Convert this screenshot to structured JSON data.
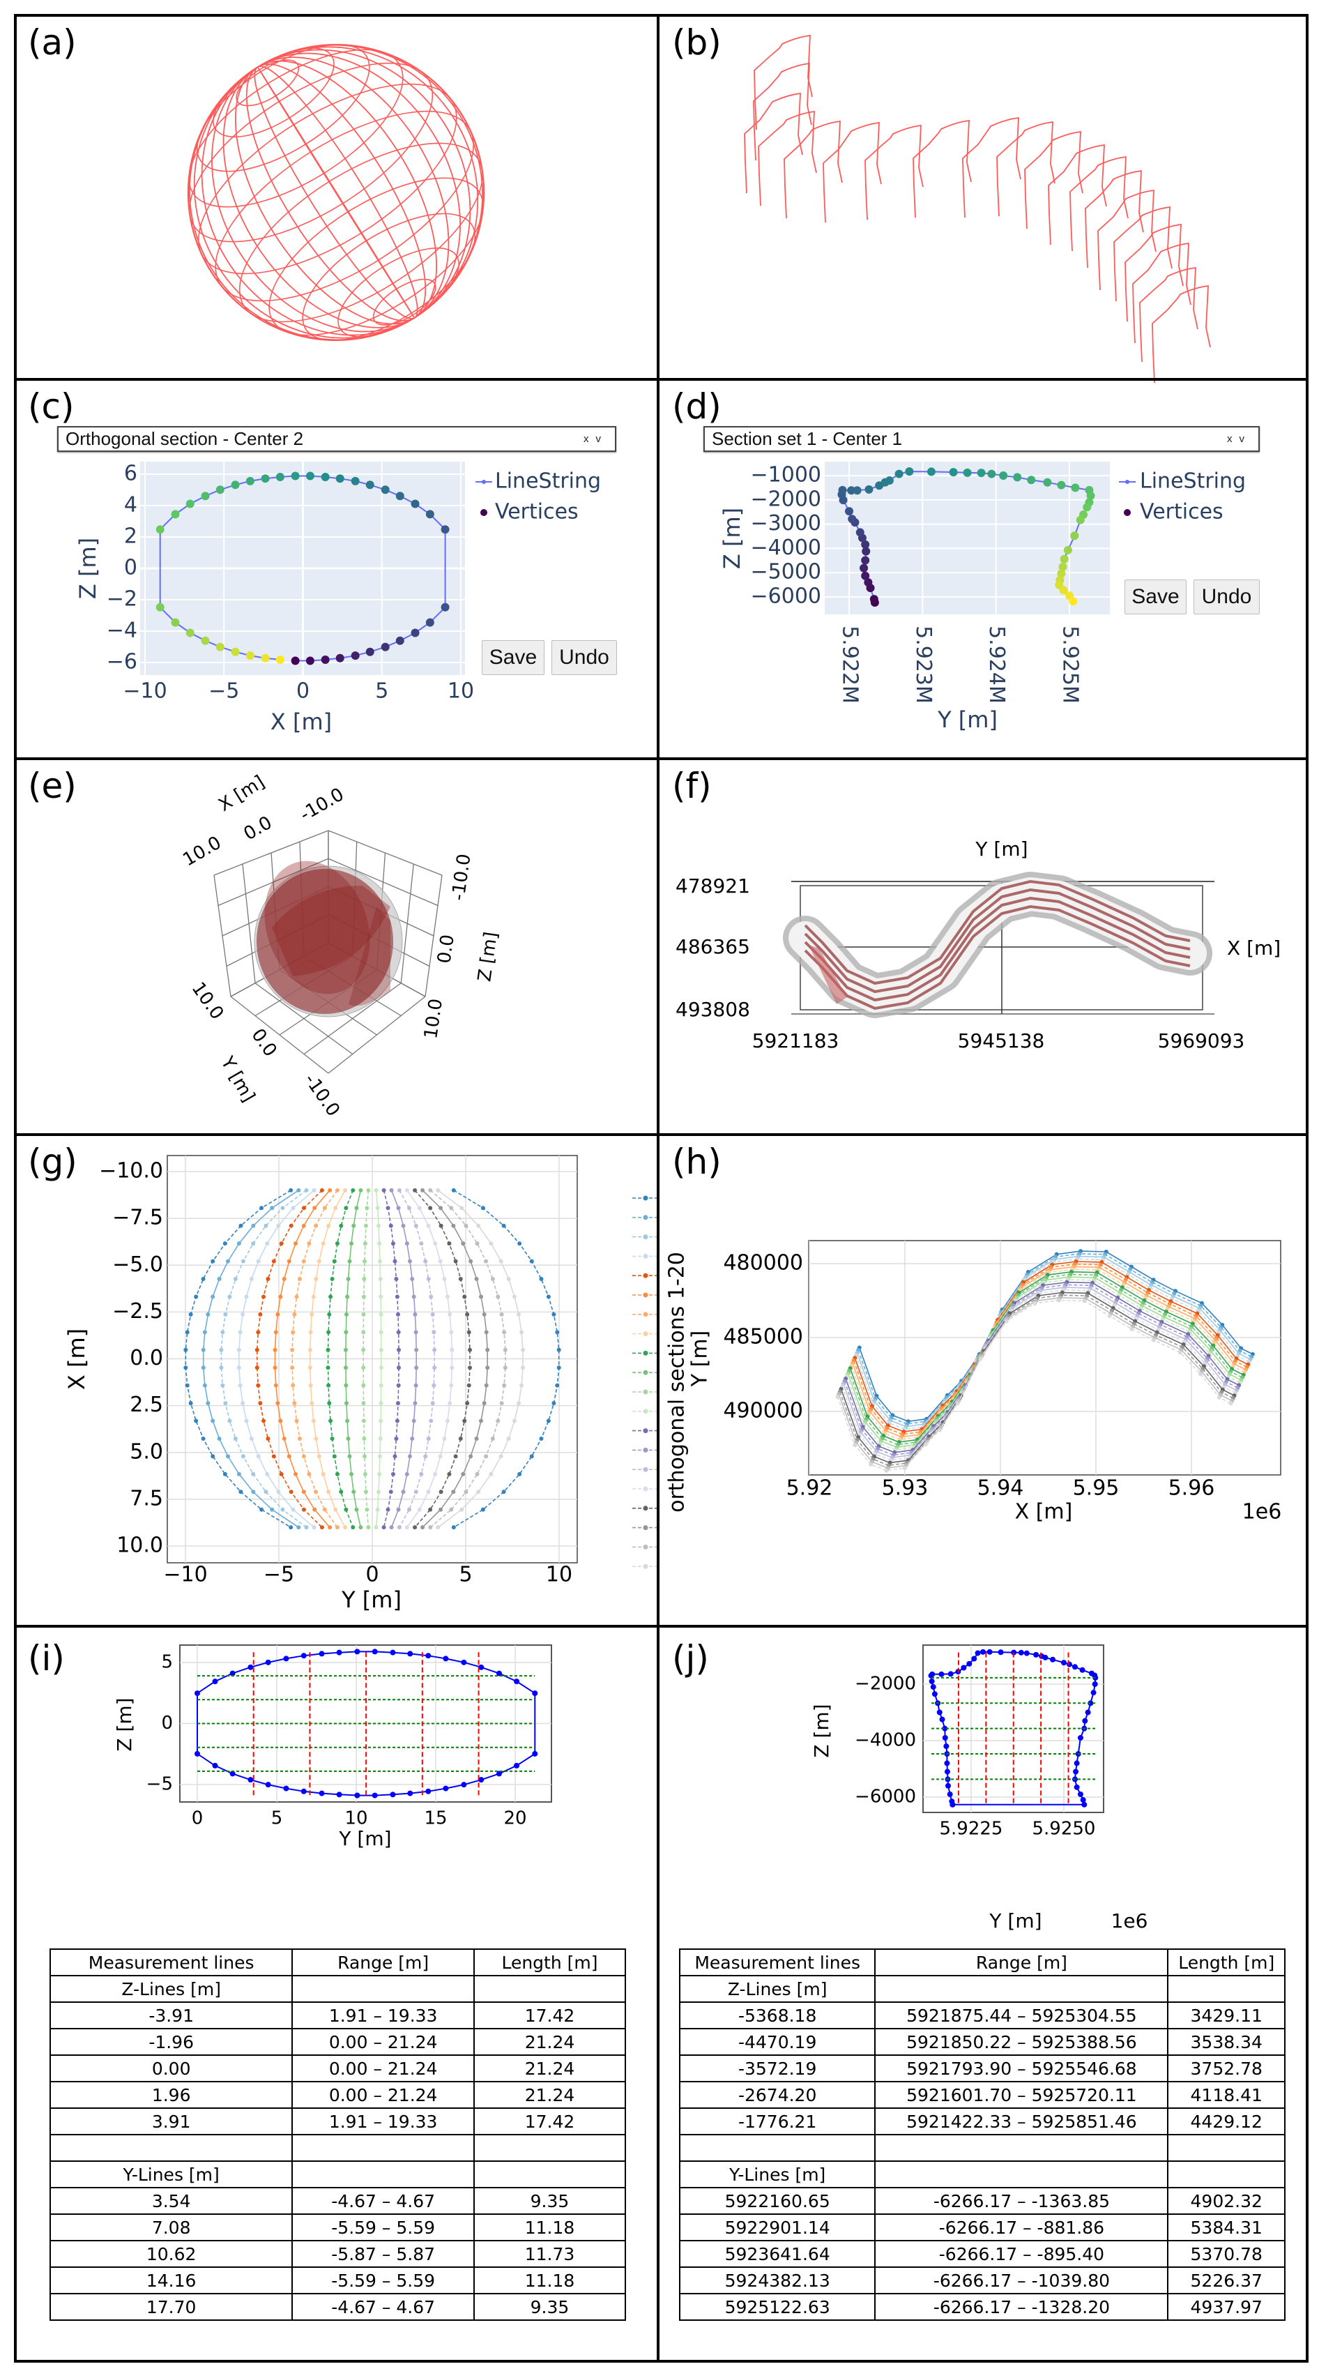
{
  "panel_labels": {
    "a": "(a)",
    "b": "(b)",
    "c": "(c)",
    "d": "(d)",
    "e": "(e)",
    "f": "(f)",
    "g": "(g)",
    "h": "(h)",
    "i": "(i)",
    "j": "(j)"
  },
  "colors": {
    "plotly_bg": "#e5ecf6",
    "plotly_text": "#2a3f5f",
    "linestring": "#636efa",
    "wireframe": "#ff5a5a",
    "outline_blue": "#0000ff",
    "z_lines": "#008000",
    "y_lines": "#ff0000",
    "solid": "#8b1a1a"
  },
  "panel_c": {
    "dropdown": "Orthogonal section - Center 2",
    "clear_icon": "x",
    "caret_icon": "v",
    "legend": [
      "LineString",
      "Vertices"
    ],
    "save": "Save",
    "undo": "Undo"
  },
  "panel_d": {
    "dropdown": "Section set 1 - Center 1",
    "clear_icon": "x",
    "caret_icon": "v",
    "legend": [
      "LineString",
      "Vertices"
    ],
    "save": "Save",
    "undo": "Undo"
  },
  "panel_e": {
    "xlabel": "X [m]",
    "ylabel": "Y [m]",
    "zlabel": "Z [m]",
    "x_ticks": [
      "10.0",
      "0.0",
      "-10.0"
    ],
    "y_ticks": [
      "10.0",
      "0.0",
      "-10.0"
    ],
    "z_ticks": [
      "-10.0",
      "0.0",
      "10.0"
    ]
  },
  "panel_f": {
    "ylabel": "Y [m]",
    "xlabel": "X [m]",
    "y_ticks": [
      "478921",
      "486365",
      "493808"
    ],
    "x_ticks": [
      "5921183",
      "5945138",
      "5969093"
    ]
  },
  "chart_data": [
    {
      "panel": "c",
      "type": "line",
      "xlabel": "X [m]",
      "ylabel": "Z [m]",
      "xlim": [
        -10.3,
        10.3
      ],
      "ylim": [
        -6.8,
        6.8
      ],
      "grid": true,
      "legend_placement": "right",
      "x_ticks": [
        -10,
        -5,
        0,
        5,
        10
      ],
      "x_tick_labels": [
        "−10",
        "−5",
        "0",
        "5",
        "10"
      ],
      "y_ticks": [
        -6,
        -4,
        -2,
        0,
        2,
        4,
        6
      ],
      "y_tick_labels": [
        "−6",
        "−4",
        "−2",
        "0",
        "2",
        "4",
        "6"
      ],
      "vertices": [
        [
          -0.48,
          -5.89
        ],
        [
          0.46,
          -5.89
        ],
        [
          1.42,
          -5.82
        ],
        [
          2.35,
          -5.72
        ],
        [
          3.32,
          -5.56
        ],
        [
          4.25,
          -5.32
        ],
        [
          5.22,
          -5.01
        ],
        [
          6.15,
          -4.61
        ],
        [
          7.11,
          -4.11
        ],
        [
          8.05,
          -3.45
        ],
        [
          9.01,
          -2.48
        ],
        [
          9.01,
          2.48
        ],
        [
          8.05,
          3.45
        ],
        [
          7.11,
          4.11
        ],
        [
          6.15,
          4.61
        ],
        [
          5.22,
          5.01
        ],
        [
          4.25,
          5.32
        ],
        [
          3.32,
          5.56
        ],
        [
          2.35,
          5.72
        ],
        [
          1.42,
          5.82
        ],
        [
          0.46,
          5.89
        ],
        [
          -0.48,
          5.89
        ],
        [
          -1.44,
          5.82
        ],
        [
          -2.38,
          5.72
        ],
        [
          -3.34,
          5.56
        ],
        [
          -4.28,
          5.32
        ],
        [
          -5.24,
          5.01
        ],
        [
          -6.18,
          4.61
        ],
        [
          -7.14,
          4.11
        ],
        [
          -8.08,
          3.45
        ],
        [
          -9.04,
          2.48
        ],
        [
          -9.04,
          -2.48
        ],
        [
          -8.08,
          -3.45
        ],
        [
          -7.14,
          -4.11
        ],
        [
          -6.18,
          -4.61
        ],
        [
          -5.24,
          -5.01
        ],
        [
          -4.28,
          -5.32
        ],
        [
          -3.34,
          -5.56
        ],
        [
          -2.38,
          -5.72
        ],
        [
          -1.44,
          -5.82
        ]
      ]
    },
    {
      "panel": "d",
      "type": "line",
      "xlabel": "Y [m]",
      "ylabel": "Z [m]",
      "ylim": [
        -6400,
        -800
      ],
      "grid": true,
      "legend_placement": "right",
      "x_ticks": [
        5.922,
        5.923,
        5.924,
        5.925
      ],
      "x_tick_labels": [
        "5.922M",
        "5.923M",
        "5.924M",
        "5.925M"
      ],
      "y_ticks": [
        -1000,
        -2000,
        -3000,
        -4000,
        -5000,
        -6000
      ],
      "y_tick_labels": [
        "−1000",
        "−2000",
        "−3000",
        "−4000",
        "−5000",
        "−6000"
      ],
      "vertices": [
        [
          5.92235,
          -6230
        ],
        [
          5.92234,
          -6090
        ],
        [
          5.92229,
          -5630
        ],
        [
          5.92226,
          -5400
        ],
        [
          5.92222,
          -5130
        ],
        [
          5.9222,
          -4810
        ],
        [
          5.92222,
          -4490
        ],
        [
          5.92223,
          -4120
        ],
        [
          5.92222,
          -3840
        ],
        [
          5.92218,
          -3570
        ],
        [
          5.92215,
          -3340
        ],
        [
          5.92208,
          -2930
        ],
        [
          5.92204,
          -2790
        ],
        [
          5.922,
          -2470
        ],
        [
          5.92192,
          -2010
        ],
        [
          5.9219,
          -1780
        ],
        [
          5.92191,
          -1600
        ],
        [
          5.92203,
          -1610
        ],
        [
          5.92211,
          -1610
        ],
        [
          5.92227,
          -1570
        ],
        [
          5.92241,
          -1410
        ],
        [
          5.92249,
          -1280
        ],
        [
          5.92255,
          -1200
        ],
        [
          5.92268,
          -930
        ],
        [
          5.92282,
          -830
        ],
        [
          5.92312,
          -840
        ],
        [
          5.92342,
          -860
        ],
        [
          5.92361,
          -880
        ],
        [
          5.9238,
          -890
        ],
        [
          5.92394,
          -930
        ],
        [
          5.9241,
          -1000
        ],
        [
          5.92429,
          -1070
        ],
        [
          5.92448,
          -1180
        ],
        [
          5.9247,
          -1280
        ],
        [
          5.92489,
          -1390
        ],
        [
          5.92508,
          -1500
        ],
        [
          5.92527,
          -1600
        ],
        [
          5.92529,
          -1830
        ],
        [
          5.92527,
          -2100
        ],
        [
          5.92524,
          -2300
        ],
        [
          5.92519,
          -2610
        ],
        [
          5.92515,
          -2830
        ],
        [
          5.92507,
          -3480
        ],
        [
          5.92498,
          -4070
        ],
        [
          5.92493,
          -4440
        ],
        [
          5.92491,
          -4760
        ],
        [
          5.92489,
          -5040
        ],
        [
          5.92487,
          -5310
        ],
        [
          5.92486,
          -5500
        ],
        [
          5.92492,
          -5720
        ],
        [
          5.925,
          -5950
        ],
        [
          5.92505,
          -6180
        ]
      ]
    },
    {
      "panel": "g",
      "type": "line",
      "xlabel": "Y [m]",
      "ylabel": "X [m]",
      "xlim": [
        -11,
        11
      ],
      "ylim": [
        10.9,
        -10.9
      ],
      "y_inverted": true,
      "grid": true,
      "legend_placement": "right",
      "legend_title": "orthogonal sections 1-20",
      "x_ticks": [
        -10,
        -5,
        0,
        5,
        10
      ],
      "x_tick_labels": [
        "−10",
        "−5",
        "0",
        "5",
        "10"
      ],
      "y_ticks": [
        -10,
        -7.5,
        -5,
        -2.5,
        0,
        2.5,
        5,
        7.5,
        10
      ],
      "y_tick_labels": [
        "−10.0",
        "−7.5",
        "−5.0",
        "−2.5",
        "0.0",
        "2.5",
        "5.0",
        "7.5",
        "10.0"
      ],
      "x_range_of_points": [
        -9,
        9
      ],
      "section_y_at_center": [
        10,
        -9.05,
        -8.09,
        -7.14,
        -6.17,
        -5.21,
        -4.29,
        -3.33,
        -2.37,
        -1.42,
        -0.48,
        0.48,
        1.42,
        2.36,
        3.33,
        4.27,
        5.23,
        6.17,
        7.13,
        8.07
      ],
      "section_colors": [
        "#3182bd",
        "#6baed6",
        "#9ecae1",
        "#c6dbef",
        "#e6550d",
        "#fd8d3c",
        "#fdae6b",
        "#fdd0a2",
        "#31a354",
        "#74c476",
        "#a1d99b",
        "#c7e9c0",
        "#756bb1",
        "#9e9ac8",
        "#bcbddc",
        "#dadaeb",
        "#636363",
        "#969696",
        "#bdbdbd",
        "#d9d9d9"
      ]
    },
    {
      "panel": "h",
      "type": "line",
      "xlabel": "X [m]",
      "ylabel": "Y [m]",
      "x_offset_label": "1e6",
      "y_inverted": true,
      "grid": true,
      "x_ticks": [
        5.92,
        5.93,
        5.94,
        5.95,
        5.96
      ],
      "x_tick_labels": [
        "5.92",
        "5.93",
        "5.94",
        "5.95",
        "5.96"
      ],
      "y_ticks": [
        480000,
        485000,
        490000
      ],
      "y_tick_labels": [
        "480000",
        "485000",
        "490000"
      ],
      "section_1": [
        [
          5.92524,
          485684
        ],
        [
          5.92704,
          488947
        ],
        [
          5.92871,
          490253
        ],
        [
          5.93035,
          490674
        ],
        [
          5.93227,
          490505
        ],
        [
          5.93445,
          488905
        ],
        [
          5.93592,
          487937
        ],
        [
          5.9378,
          486126
        ],
        [
          5.94019,
          483116
        ],
        [
          5.94291,
          480568
        ],
        [
          5.94589,
          479368
        ],
        [
          5.9484,
          479158
        ],
        [
          5.95108,
          479200
        ],
        [
          5.95372,
          480211
        ],
        [
          5.95602,
          481095
        ],
        [
          5.95832,
          481853
        ],
        [
          5.96109,
          482674
        ],
        [
          5.96323,
          484147
        ],
        [
          5.96519,
          485726
        ],
        [
          5.96641,
          486126
        ]
      ]
    },
    {
      "panel": "i",
      "type": "line",
      "xlabel": "Y [m]",
      "ylabel": "Z [m]",
      "grid": true,
      "x_ticks": [
        0,
        5,
        10,
        15,
        20
      ],
      "x_tick_labels": [
        "0",
        "5",
        "10",
        "15",
        "20"
      ],
      "y_ticks": [
        -5,
        0,
        5
      ],
      "y_tick_labels": [
        "−5",
        "0",
        "5"
      ],
      "outline": [
        [
          10.06,
          -5.89
        ],
        [
          11.17,
          -5.89
        ],
        [
          12.3,
          -5.82
        ],
        [
          13.39,
          -5.72
        ],
        [
          14.53,
          -5.56
        ],
        [
          15.63,
          -5.32
        ],
        [
          16.77,
          -5.01
        ],
        [
          17.86,
          -4.61
        ],
        [
          18.99,
          -4.11
        ],
        [
          20.09,
          -3.45
        ],
        [
          21.24,
          -2.48
        ],
        [
          21.24,
          2.48
        ],
        [
          20.09,
          3.45
        ],
        [
          18.99,
          4.11
        ],
        [
          17.86,
          4.61
        ],
        [
          16.77,
          5.01
        ],
        [
          15.63,
          5.32
        ],
        [
          14.53,
          5.56
        ],
        [
          13.39,
          5.72
        ],
        [
          12.3,
          5.82
        ],
        [
          11.17,
          5.89
        ],
        [
          10.06,
          5.89
        ],
        [
          8.93,
          5.82
        ],
        [
          7.83,
          5.72
        ],
        [
          6.7,
          5.56
        ],
        [
          5.59,
          5.32
        ],
        [
          4.46,
          5.01
        ],
        [
          3.35,
          4.61
        ],
        [
          2.22,
          4.11
        ],
        [
          1.12,
          3.45
        ],
        [
          0,
          2.48
        ],
        [
          0,
          -2.48
        ],
        [
          1.12,
          -3.45
        ],
        [
          2.22,
          -4.11
        ],
        [
          3.35,
          -4.61
        ],
        [
          4.46,
          -5.01
        ],
        [
          5.59,
          -5.32
        ],
        [
          6.7,
          -5.56
        ],
        [
          7.83,
          -5.72
        ],
        [
          8.93,
          -5.82
        ],
        [
          10.06,
          -5.89
        ]
      ]
    },
    {
      "panel": "j",
      "type": "line",
      "xlabel": "Y [m]",
      "ylabel": "Z [m]",
      "x_offset_label": "1e6",
      "grid": true,
      "x_ticks": [
        5.9225,
        5.925
      ],
      "x_tick_labels": [
        "5.9225",
        "5.9250"
      ],
      "y_ticks": [
        -2000,
        -4000,
        -6000
      ],
      "y_tick_labels": [
        "−2000",
        "−4000",
        "−6000"
      ],
      "outline": [
        [
          5.922,
          -6266
        ],
        [
          5.92198,
          -6150
        ],
        [
          5.92193,
          -5900
        ],
        [
          5.92188,
          -5600
        ],
        [
          5.92187,
          -5368
        ],
        [
          5.92186,
          -5100
        ],
        [
          5.92185,
          -4800
        ],
        [
          5.92185,
          -4470
        ],
        [
          5.92183,
          -4200
        ],
        [
          5.9218,
          -3900
        ],
        [
          5.92179,
          -3572
        ],
        [
          5.92172,
          -3250
        ],
        [
          5.92165,
          -3000
        ],
        [
          5.9216,
          -2674
        ],
        [
          5.92152,
          -2350
        ],
        [
          5.92148,
          -2100
        ],
        [
          5.92144,
          -1900
        ],
        [
          5.92142,
          -1700
        ],
        [
          5.92145,
          -1650
        ],
        [
          5.9217,
          -1650
        ],
        [
          5.92195,
          -1640
        ],
        [
          5.92215,
          -1560
        ],
        [
          5.9223,
          -1420
        ],
        [
          5.92245,
          -1280
        ],
        [
          5.92258,
          -1100
        ],
        [
          5.92268,
          -900
        ],
        [
          5.92282,
          -860
        ],
        [
          5.923,
          -860
        ],
        [
          5.9233,
          -870
        ],
        [
          5.92365,
          -880
        ],
        [
          5.92385,
          -885
        ],
        [
          5.924,
          -905
        ],
        [
          5.92425,
          -960
        ],
        [
          5.9244,
          -1010
        ],
        [
          5.9245,
          -1060
        ],
        [
          5.9247,
          -1130
        ],
        [
          5.925,
          -1240
        ],
        [
          5.92515,
          -1300
        ],
        [
          5.9253,
          -1390
        ],
        [
          5.9255,
          -1500
        ],
        [
          5.92575,
          -1620
        ],
        [
          5.92583,
          -1690
        ],
        [
          5.92585,
          -1776
        ],
        [
          5.92584,
          -2000
        ],
        [
          5.9258,
          -2300
        ],
        [
          5.92572,
          -2674
        ],
        [
          5.92565,
          -3000
        ],
        [
          5.92557,
          -3300
        ],
        [
          5.92555,
          -3572
        ],
        [
          5.92545,
          -3900
        ],
        [
          5.92539,
          -4470
        ],
        [
          5.92535,
          -4800
        ],
        [
          5.92532,
          -5100
        ],
        [
          5.9253,
          -5368
        ],
        [
          5.92535,
          -5650
        ],
        [
          5.92545,
          -5900
        ],
        [
          5.92552,
          -6100
        ],
        [
          5.92555,
          -6266
        ],
        [
          5.922,
          -6266
        ]
      ]
    }
  ],
  "table_i": {
    "headers": [
      "Measurement lines",
      "Range [m]",
      "Length [m]"
    ],
    "z_label": "Z-Lines [m]",
    "z_rows": [
      [
        "-3.91",
        "1.91 – 19.33",
        "17.42"
      ],
      [
        "-1.96",
        "0.00 – 21.24",
        "21.24"
      ],
      [
        "0.00",
        "0.00 – 21.24",
        "21.24"
      ],
      [
        "1.96",
        "0.00 – 21.24",
        "21.24"
      ],
      [
        "3.91",
        "1.91 – 19.33",
        "17.42"
      ]
    ],
    "y_label": "Y-Lines [m]",
    "y_rows": [
      [
        "3.54",
        "-4.67 – 4.67",
        "9.35"
      ],
      [
        "7.08",
        "-5.59 – 5.59",
        "11.18"
      ],
      [
        "10.62",
        "-5.87 – 5.87",
        "11.73"
      ],
      [
        "14.16",
        "-5.59 – 5.59",
        "11.18"
      ],
      [
        "17.70",
        "-4.67 – 4.67",
        "9.35"
      ]
    ]
  },
  "table_j": {
    "headers": [
      "Measurement lines",
      "Range [m]",
      "Length [m]"
    ],
    "z_label": "Z-Lines [m]",
    "z_rows": [
      [
        "-5368.18",
        "5921875.44 – 5925304.55",
        "3429.11"
      ],
      [
        "-4470.19",
        "5921850.22 – 5925388.56",
        "3538.34"
      ],
      [
        "-3572.19",
        "5921793.90 – 5925546.68",
        "3752.78"
      ],
      [
        "-2674.20",
        "5921601.70 – 5925720.11",
        "4118.41"
      ],
      [
        "-1776.21",
        "5921422.33 – 5925851.46",
        "4429.12"
      ]
    ],
    "y_label": "Y-Lines [m]",
    "y_rows": [
      [
        "5922160.65",
        "-6266.17 – -1363.85",
        "4902.32"
      ],
      [
        "5922901.14",
        "-6266.17 – -881.86",
        "5384.31"
      ],
      [
        "5923641.64",
        "-6266.17 – -895.40",
        "5370.78"
      ],
      [
        "5924382.13",
        "-6266.17 – -1039.80",
        "5226.37"
      ],
      [
        "5925122.63",
        "-6266.17 – -1328.20",
        "4937.97"
      ]
    ]
  }
}
